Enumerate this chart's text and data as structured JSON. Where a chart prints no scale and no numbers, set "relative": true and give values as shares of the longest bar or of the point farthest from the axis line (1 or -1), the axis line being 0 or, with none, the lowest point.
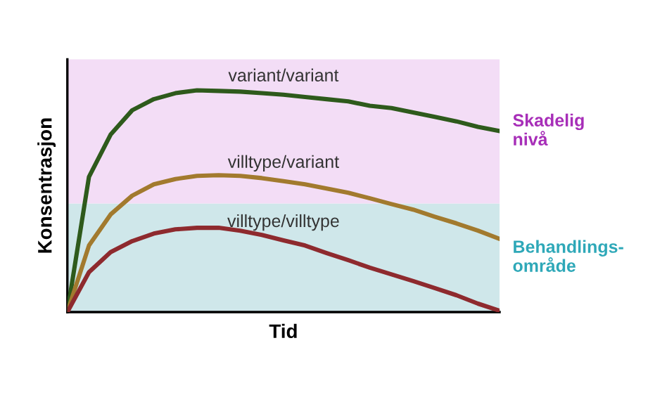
{
  "chart_data": {
    "type": "line",
    "relative": true,
    "xlabel": "Tid",
    "ylabel": "Konsentrasjon",
    "tick_labels": false,
    "grid": false,
    "legend": false,
    "marker": "none",
    "line_style": "solid",
    "categories": [
      null,
      null,
      null,
      null,
      null,
      null,
      null,
      null,
      null,
      null,
      null,
      null,
      null,
      null,
      null,
      null,
      null,
      null,
      null,
      null,
      null
    ],
    "series": [
      {
        "name": "variant/variant",
        "color": "#2e5a1c",
        "values": [
          0,
          0.61,
          0.8,
          0.91,
          0.96,
          0.987,
          1.0,
          0.997,
          0.994,
          0.987,
          0.98,
          0.97,
          0.96,
          0.95,
          0.93,
          0.92,
          0.9,
          0.88,
          0.86,
          0.835,
          0.816
        ]
      },
      {
        "name": "villtype/variant",
        "color": "#a27a2e",
        "values": [
          0,
          0.3,
          0.44,
          0.525,
          0.576,
          0.6,
          0.614,
          0.617,
          0.614,
          0.604,
          0.59,
          0.576,
          0.557,
          0.538,
          0.513,
          0.487,
          0.462,
          0.43,
          0.4,
          0.367,
          0.33
        ]
      },
      {
        "name": "villtype/villtype",
        "color": "#8e2a2e",
        "values": [
          0,
          0.18,
          0.27,
          0.32,
          0.354,
          0.373,
          0.38,
          0.38,
          0.367,
          0.348,
          0.323,
          0.3,
          0.266,
          0.234,
          0.2,
          0.17,
          0.14,
          0.108,
          0.076,
          0.038,
          0.006
        ]
      }
    ],
    "bands": [
      {
        "axis": "y",
        "from": 0,
        "to": 0.49,
        "label": "Behandlings-\nområde",
        "color": "#cfe7ea"
      },
      {
        "axis": "y",
        "from": 0.49,
        "to": 1.14,
        "label": "Skadelig\nnivå",
        "color": "#f3ddf6"
      }
    ]
  }
}
